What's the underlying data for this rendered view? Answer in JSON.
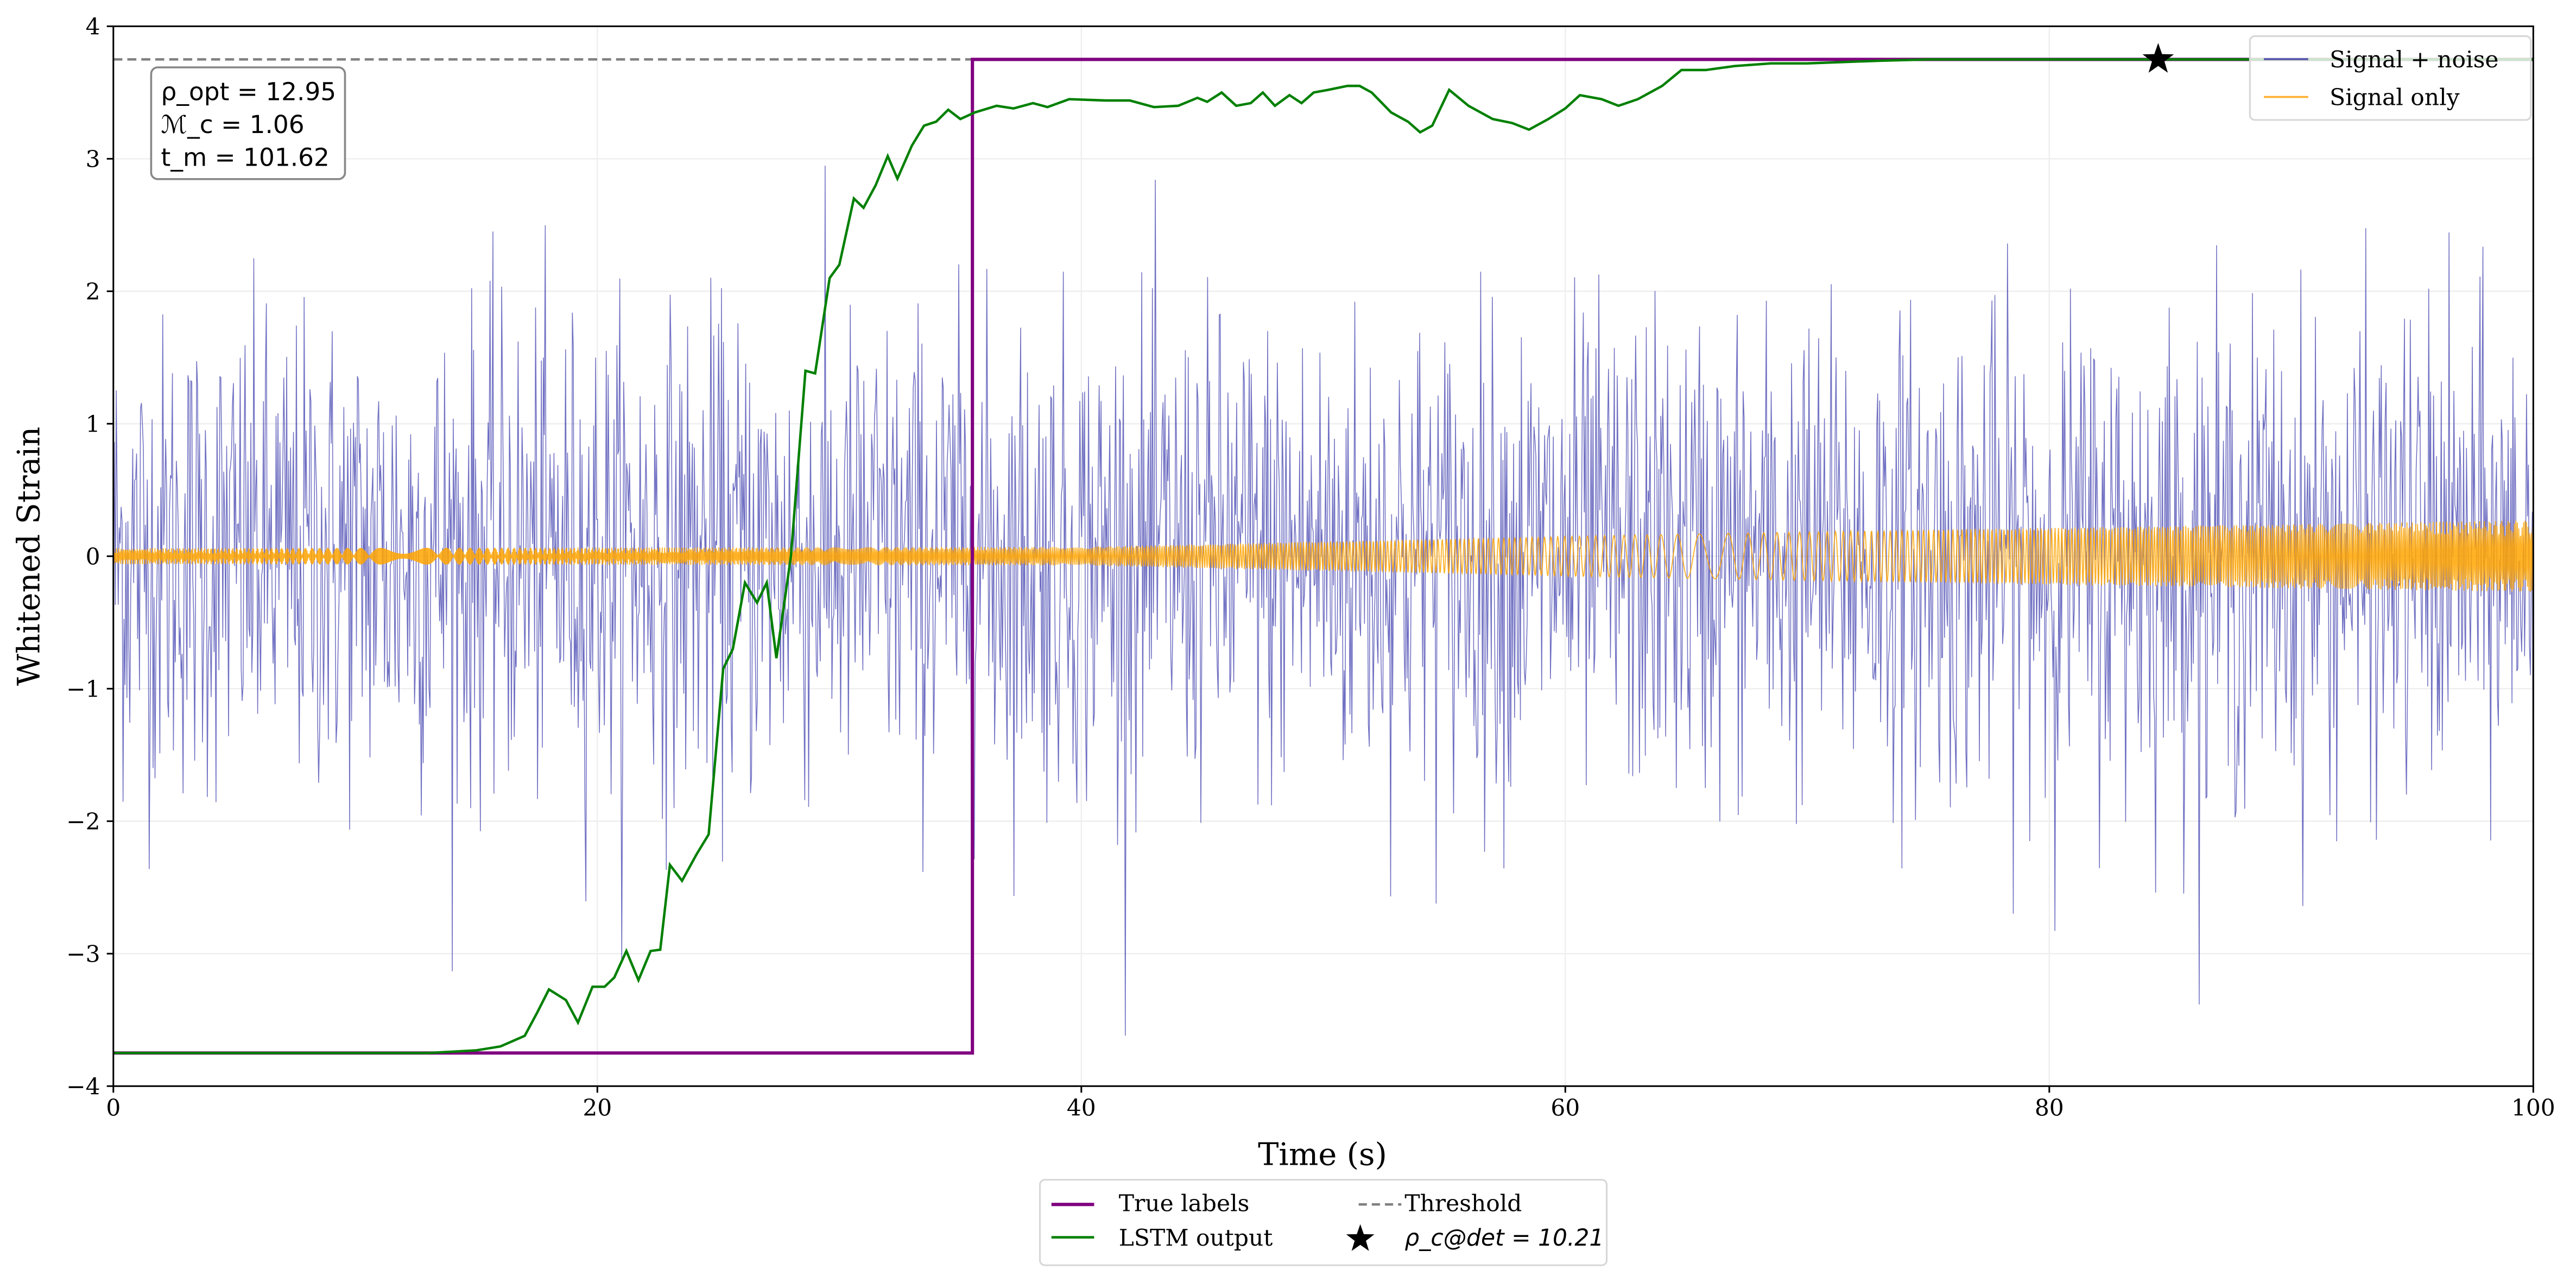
{
  "chart_data": {
    "type": "line",
    "xlabel": "Time (s)",
    "ylabel": "Whitened Strain",
    "xlim": [
      0,
      100
    ],
    "ylim": [
      -4,
      4
    ],
    "xticks": [
      0,
      20,
      40,
      60,
      80,
      100
    ],
    "xtick_labels": [
      "0",
      "20",
      "40",
      "60",
      "80",
      "100"
    ],
    "yticks": [
      -4,
      -3,
      -2,
      -1,
      0,
      1,
      2,
      3,
      4
    ],
    "ytick_labels": [
      "−4",
      "−3",
      "−2",
      "−1",
      "0",
      "1",
      "2",
      "3",
      "4"
    ],
    "grid": true,
    "annotation": {
      "rho_opt": "12.95",
      "mc": "1.06",
      "tm": "101.62",
      "lines": [
        "ρ_opt = 12.95",
        "ℳ_c = 1.06",
        "t_m = 101.62"
      ]
    },
    "legend_top_right": {
      "placement": "top-right",
      "entries": [
        "Signal + noise",
        "Signal only"
      ]
    },
    "legend_bottom": {
      "placement": "below-center",
      "entries": [
        "True labels",
        "Threshold",
        "LSTM output",
        "ρ_c@det = 10.21"
      ]
    },
    "series": [
      {
        "name": "Signal + noise",
        "color": "#3333aa",
        "kind": "noise",
        "std": 0.9,
        "n_points": 2500
      },
      {
        "name": "Signal only",
        "color": "#ffa500",
        "kind": "chirp",
        "amplitude": [
          [
            0,
            0.06
          ],
          [
            40,
            0.07
          ],
          [
            60,
            0.15
          ],
          [
            75,
            0.2
          ],
          [
            100,
            0.27
          ]
        ]
      },
      {
        "name": "True labels",
        "color": "#800080",
        "x": [
          0,
          35.5,
          35.5,
          100
        ],
        "y": [
          -3.75,
          -3.75,
          3.75,
          3.75
        ]
      },
      {
        "name": "LSTM output",
        "color": "#008000",
        "x": [
          0,
          13,
          15,
          16,
          17,
          17.5,
          18,
          18.7,
          19.2,
          19.8,
          20.3,
          20.7,
          21.2,
          21.7,
          22.2,
          22.6,
          23,
          23.5,
          24.1,
          24.6,
          25.2,
          25.6,
          26.1,
          26.6,
          27,
          27.4,
          28,
          28.6,
          29,
          29.6,
          30,
          30.6,
          31,
          31.5,
          32,
          32.4,
          33,
          33.5,
          34,
          34.5,
          35,
          35.6,
          36.5,
          37.2,
          38,
          38.6,
          39.5,
          41,
          42,
          43,
          44,
          44.8,
          45.2,
          45.8,
          46.4,
          47,
          47.5,
          48,
          48.6,
          49.1,
          49.6,
          50.2,
          51,
          51.5,
          52,
          52.8,
          53.5,
          54,
          54.5,
          55.2,
          56,
          57,
          57.8,
          58.5,
          59.3,
          60,
          60.6,
          61.5,
          62.2,
          63,
          64,
          64.8,
          65.8,
          67,
          68.5,
          70,
          73,
          75,
          100
        ],
        "y": [
          -3.75,
          -3.75,
          -3.73,
          -3.7,
          -3.62,
          -3.45,
          -3.27,
          -3.35,
          -3.52,
          -3.25,
          -3.25,
          -3.18,
          -2.98,
          -3.2,
          -2.98,
          -2.97,
          -2.33,
          -2.45,
          -2.25,
          -2.1,
          -0.85,
          -0.7,
          -0.2,
          -0.35,
          -0.2,
          -0.77,
          0,
          1.4,
          1.38,
          2.1,
          2.2,
          2.7,
          2.63,
          2.8,
          3.02,
          2.85,
          3.1,
          3.25,
          3.28,
          3.37,
          3.3,
          3.35,
          3.4,
          3.38,
          3.42,
          3.39,
          3.45,
          3.44,
          3.44,
          3.39,
          3.4,
          3.46,
          3.43,
          3.5,
          3.4,
          3.42,
          3.5,
          3.4,
          3.48,
          3.42,
          3.5,
          3.52,
          3.55,
          3.55,
          3.5,
          3.35,
          3.28,
          3.2,
          3.25,
          3.52,
          3.4,
          3.3,
          3.27,
          3.22,
          3.3,
          3.38,
          3.48,
          3.45,
          3.4,
          3.45,
          3.55,
          3.67,
          3.67,
          3.7,
          3.72,
          3.72,
          3.74,
          3.75,
          3.75
        ]
      },
      {
        "name": "Threshold",
        "color": "#808080",
        "y": 3.75
      },
      {
        "name": "ρ_c@det = 10.21",
        "marker": "star",
        "x": 84.5,
        "y": 3.75
      }
    ]
  }
}
